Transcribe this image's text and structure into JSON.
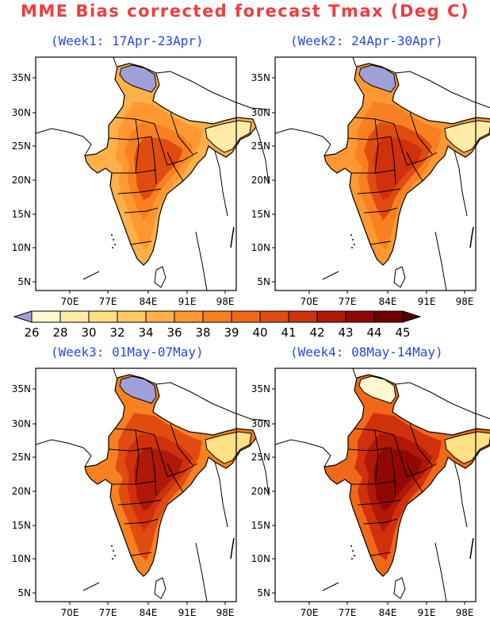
{
  "title": "MME Bias corrected forecast Tmax (Deg C)",
  "panels": [
    {
      "id": "week1",
      "title": "(Week1: 17Apr-23Apr)",
      "intensity": 0
    },
    {
      "id": "week2",
      "title": "(Week2: 24Apr-30Apr)",
      "intensity": 1
    },
    {
      "id": "week3",
      "title": "(Week3: 01May-07May)",
      "intensity": 2
    },
    {
      "id": "week4",
      "title": "(Week4: 08May-14May)",
      "intensity": 3
    }
  ],
  "axes": {
    "lat_labels": [
      "35N",
      "30N",
      "25N",
      "20N",
      "15N",
      "10N",
      "5N"
    ],
    "lon_labels": [
      "70E",
      "77E",
      "84E",
      "91E",
      "98E"
    ]
  },
  "colorbar": {
    "labels": [
      "26",
      "28",
      "30",
      "32",
      "34",
      "36",
      "38",
      "39",
      "40",
      "41",
      "42",
      "43",
      "44",
      "45"
    ],
    "colors": [
      "#a0a0d8",
      "#fff8d0",
      "#ffeca8",
      "#ffe084",
      "#ffc860",
      "#ffb048",
      "#ff9830",
      "#f88020",
      "#f06818",
      "#e04c10",
      "#d0300c",
      "#b01808",
      "#900804",
      "#700000",
      "#500000"
    ]
  }
}
